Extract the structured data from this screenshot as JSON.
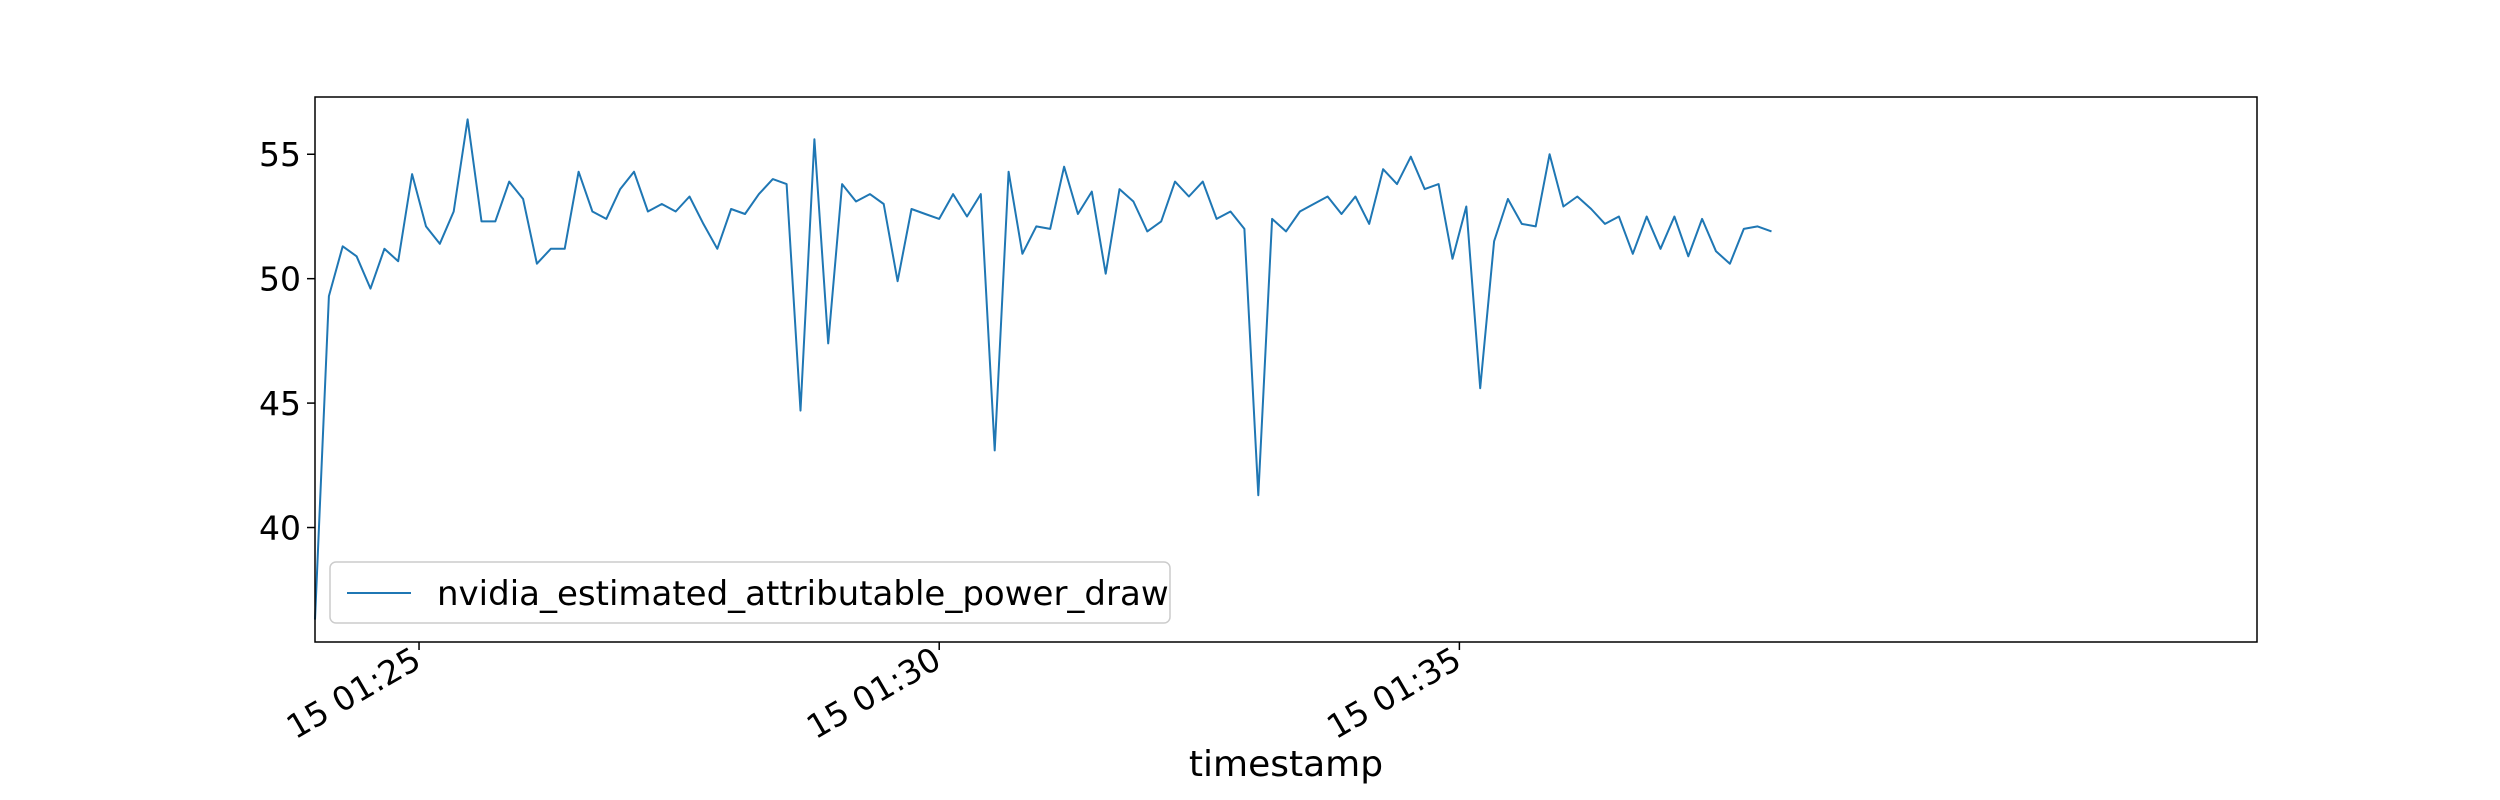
{
  "chart_data": {
    "type": "line",
    "title": "",
    "xlabel": "timestamp",
    "ylabel": "",
    "x_ticks": [
      "15 01:25",
      "15 01:30",
      "15 01:35"
    ],
    "y_ticks": [
      40,
      45,
      50,
      55
    ],
    "xlim": [
      0,
      140
    ],
    "ylim": [
      35.4,
      57.3
    ],
    "grid": false,
    "legend_position": "lower-left",
    "series": [
      {
        "name": "nvidia_estimated_attributable_power_draw",
        "color": "#1f77b4",
        "values": [
          36.3,
          49.3,
          51.3,
          50.9,
          49.6,
          51.2,
          50.7,
          54.2,
          52.1,
          51.4,
          52.7,
          56.4,
          52.3,
          52.3,
          53.9,
          53.2,
          50.6,
          51.2,
          51.2,
          54.3,
          52.7,
          52.4,
          53.6,
          54.3,
          52.7,
          53.0,
          52.7,
          53.3,
          52.2,
          51.2,
          52.8,
          52.6,
          53.4,
          54.0,
          53.8,
          44.7,
          55.6,
          47.4,
          53.8,
          53.1,
          53.4,
          53.0,
          49.9,
          52.8,
          52.6,
          52.4,
          53.4,
          52.5,
          53.4,
          43.1,
          54.3,
          51.0,
          52.1,
          52.0,
          54.5,
          52.6,
          53.5,
          50.2,
          53.6,
          53.1,
          51.9,
          52.3,
          53.9,
          53.3,
          53.9,
          52.4,
          52.7,
          52.0,
          41.3,
          52.4,
          51.9,
          52.7,
          53.0,
          53.3,
          52.6,
          53.3,
          52.2,
          54.4,
          53.8,
          54.9,
          53.6,
          53.8,
          50.8,
          52.9,
          45.6,
          51.5,
          53.2,
          52.2,
          52.1,
          55.0,
          52.9,
          53.3,
          52.8,
          52.2,
          52.5,
          51.0,
          52.5,
          51.2,
          52.5,
          50.9,
          52.4,
          51.1,
          50.6,
          52.0,
          52.1,
          51.9
        ]
      }
    ],
    "x_tick_positions": [
      7.5,
      45.0,
      82.5
    ]
  }
}
